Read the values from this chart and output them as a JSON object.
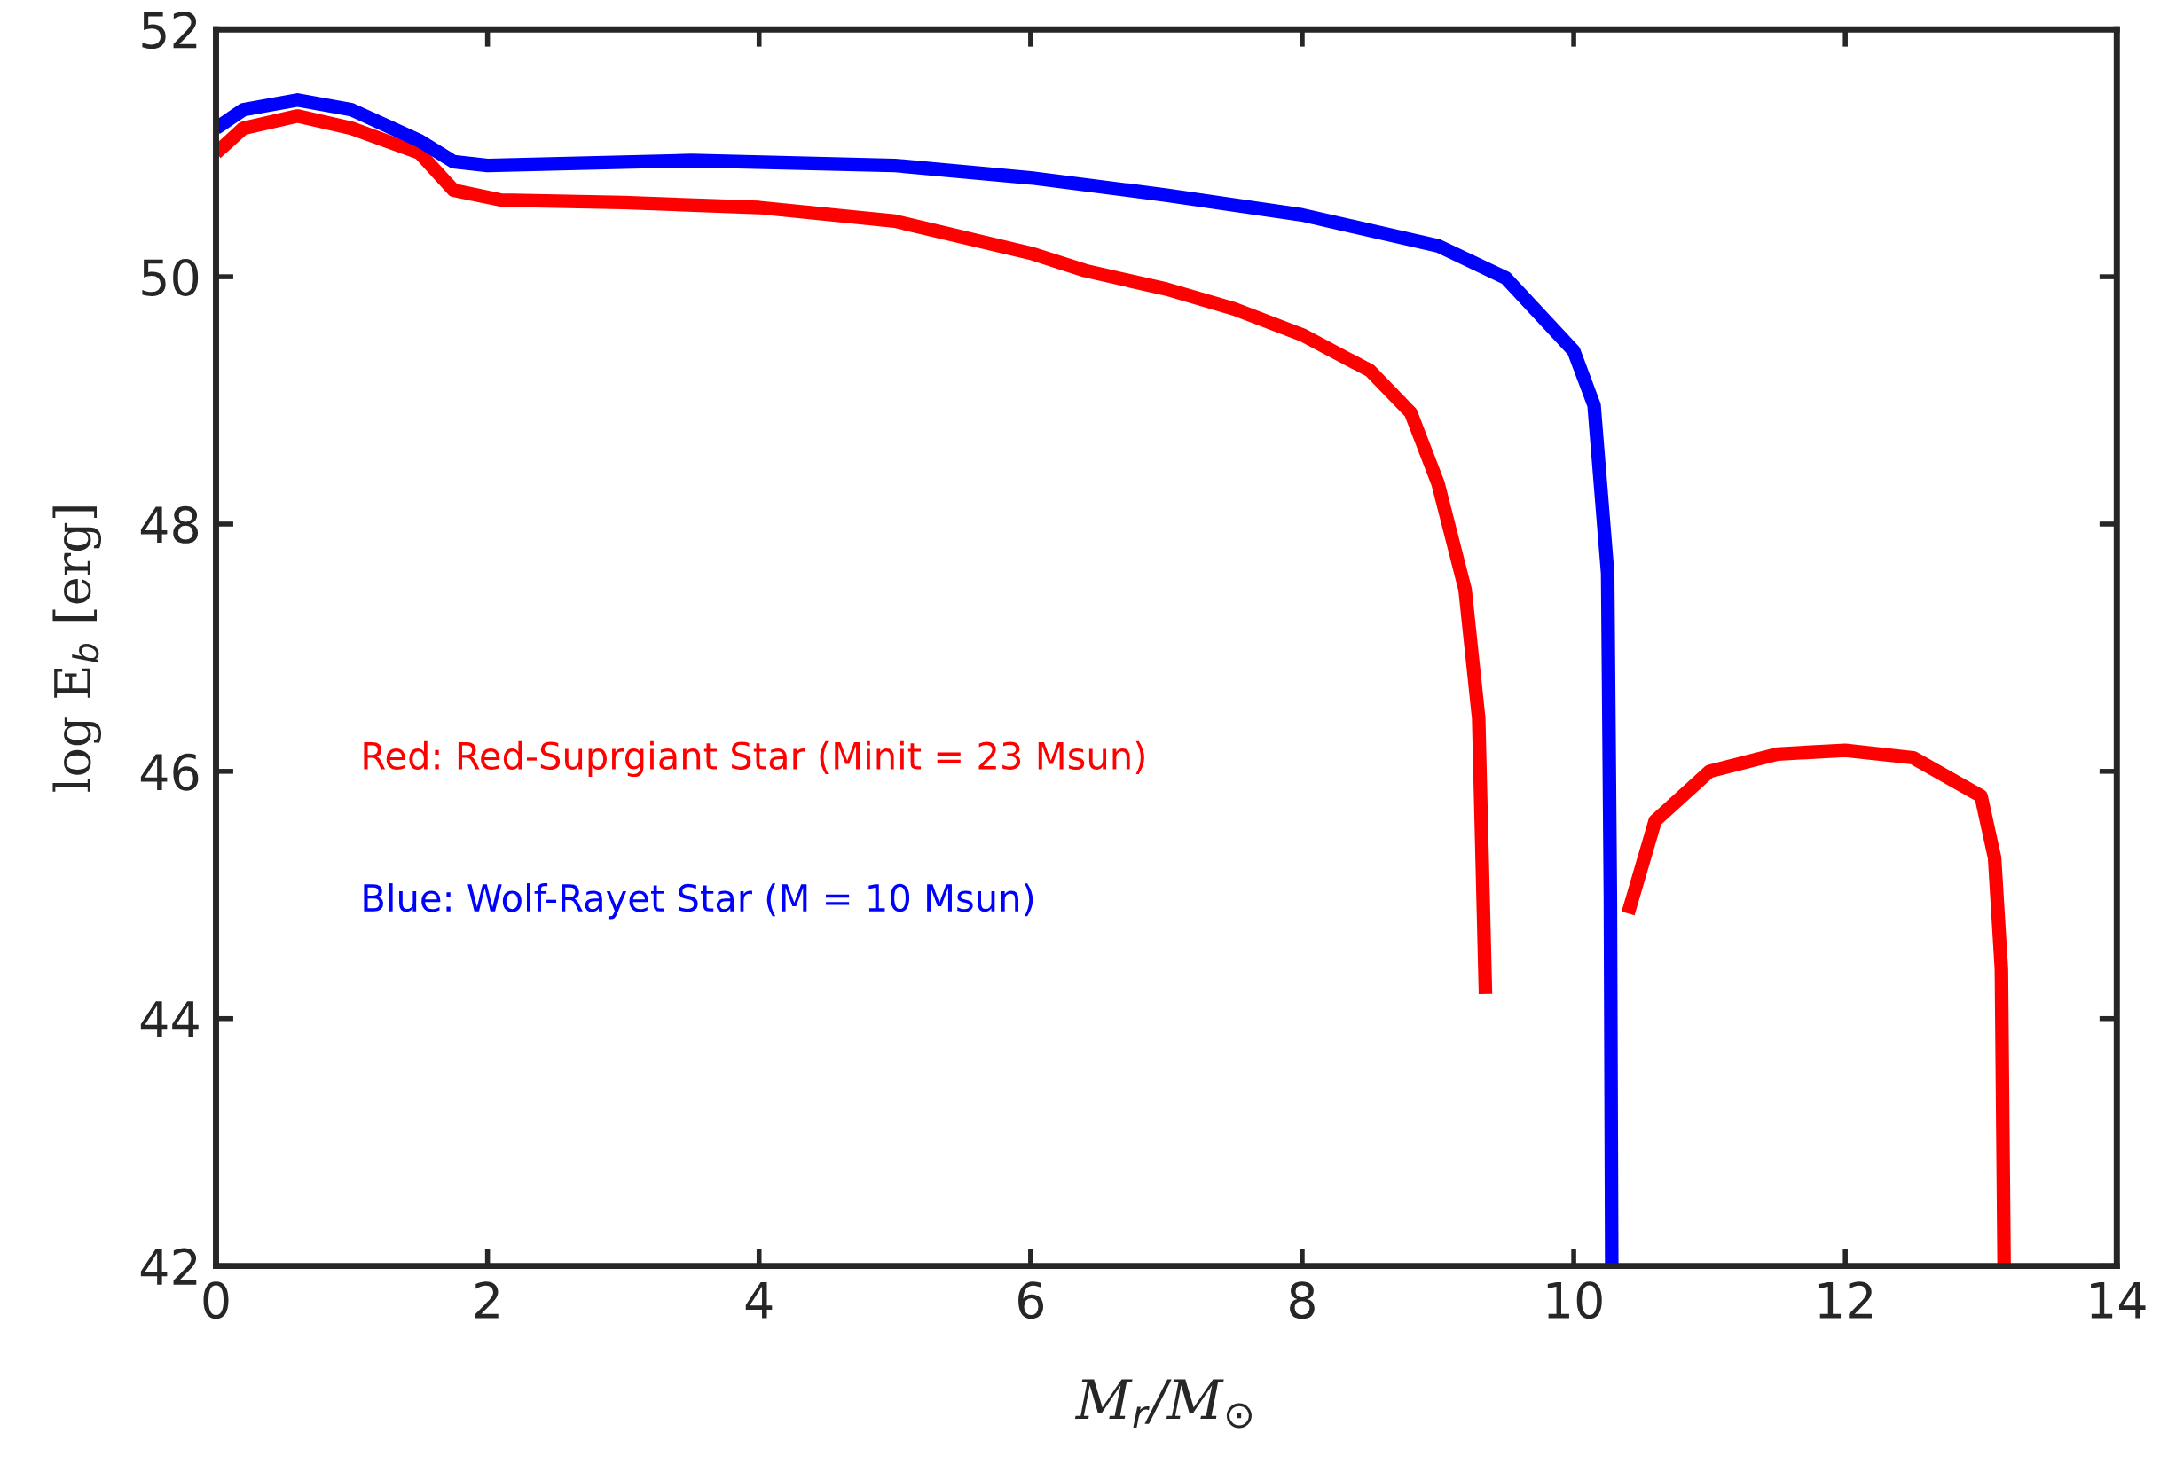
{
  "chart_data": {
    "type": "line",
    "xlabel": "M$_{r}$/M$_{⊙}$",
    "ylabel": "log E$_{b}$ [erg]",
    "xlim": [
      0,
      14
    ],
    "ylim": [
      42,
      52
    ],
    "xticks": [
      0,
      2,
      4,
      6,
      8,
      10,
      12,
      14
    ],
    "yticks": [
      42,
      44,
      46,
      48,
      50,
      52
    ],
    "grid": false,
    "legend": false,
    "marker": "none",
    "line_style": "solid",
    "series": [
      {
        "name": "Red: Red-Suprgiant Star (Minit = 23 Msun)",
        "color": "#ff0000",
        "x": [
          0,
          0.2,
          0.6,
          1.0,
          1.5,
          1.75,
          2.1,
          3,
          4,
          5,
          6,
          6.4,
          7,
          7.5,
          8,
          8.5,
          8.8,
          9.0,
          9.2,
          9.3,
          9.35,
          9.36,
          10.4,
          10.6,
          11,
          11.5,
          12,
          12.5,
          13,
          13.1,
          13.15,
          13.17
        ],
        "values": [
          51.0,
          51.2,
          51.3,
          51.2,
          51.0,
          50.7,
          50.62,
          50.6,
          50.56,
          50.45,
          50.19,
          50.05,
          49.9,
          49.74,
          49.53,
          49.24,
          48.9,
          48.33,
          47.47,
          46.43,
          44.2,
          null,
          44.85,
          45.6,
          46.0,
          46.14,
          46.17,
          46.11,
          45.8,
          45.3,
          44.4,
          42.0
        ]
      },
      {
        "name": "Blue: Wolf-Rayet Star (M = 10 Msun)",
        "color": "#0000ff",
        "x": [
          0,
          0.2,
          0.6,
          1.0,
          1.5,
          1.75,
          2,
          3.5,
          5,
          6,
          7,
          8,
          9,
          9.5,
          10,
          10.15,
          10.25,
          10.27,
          10.28
        ],
        "values": [
          51.2,
          51.35,
          51.43,
          51.35,
          51.1,
          50.93,
          50.9,
          50.94,
          50.9,
          50.8,
          50.66,
          50.5,
          50.25,
          49.99,
          49.4,
          48.96,
          47.6,
          45.0,
          42.0
        ]
      }
    ]
  }
}
